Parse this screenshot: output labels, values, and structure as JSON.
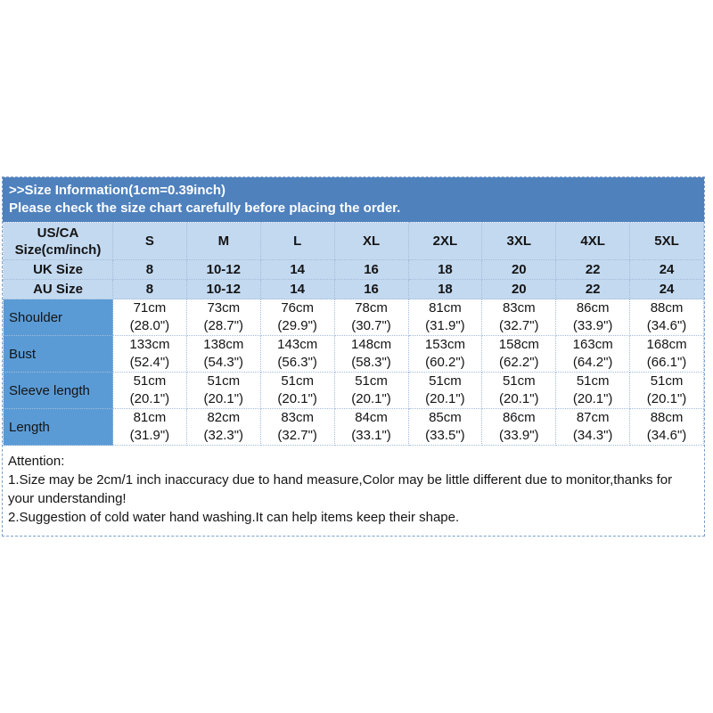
{
  "colors": {
    "band_bg": "#4f81bd",
    "band_text": "#ffffff",
    "header_row_bg": "#c3d9f0",
    "label_column_bg": "#5b9bd5",
    "table_text": "#141414",
    "grid_border": "#a3bcd9",
    "outer_border": "#7aa0cc"
  },
  "banner": {
    "title": ">>Size Information(1cm=0.39inch)",
    "subtitle": "Please check the size chart carefully before placing the order."
  },
  "size_table": {
    "corner_line1": "US/CA",
    "corner_line2": "Size(cm/inch)",
    "size_headers": [
      "S",
      "M",
      "L",
      "XL",
      "2XL",
      "3XL",
      "4XL",
      "5XL"
    ],
    "size_rows": [
      {
        "label": "UK Size",
        "values": [
          "8",
          "10-12",
          "14",
          "16",
          "18",
          "20",
          "22",
          "24"
        ]
      },
      {
        "label": "AU Size",
        "values": [
          "8",
          "10-12",
          "14",
          "16",
          "18",
          "20",
          "22",
          "24"
        ]
      }
    ],
    "measurement_rows": [
      {
        "label": "Shoulder",
        "cm": [
          "71cm",
          "73cm",
          "76cm",
          "78cm",
          "81cm",
          "83cm",
          "86cm",
          "88cm"
        ],
        "inch": [
          "(28.0\")",
          "(28.7\")",
          "(29.9\")",
          "(30.7\")",
          "(31.9\")",
          "(32.7\")",
          "(33.9\")",
          "(34.6\")"
        ]
      },
      {
        "label": "Bust",
        "cm": [
          "133cm",
          "138cm",
          "143cm",
          "148cm",
          "153cm",
          "158cm",
          "163cm",
          "168cm"
        ],
        "inch": [
          "(52.4\")",
          "(54.3\")",
          "(56.3\")",
          "(58.3\")",
          "(60.2\")",
          "(62.2\")",
          "(64.2\")",
          "(66.1\")"
        ]
      },
      {
        "label": "Sleeve length",
        "cm": [
          "51cm",
          "51cm",
          "51cm",
          "51cm",
          "51cm",
          "51cm",
          "51cm",
          "51cm"
        ],
        "inch": [
          "(20.1\")",
          "(20.1\")",
          "(20.1\")",
          "(20.1\")",
          "(20.1\")",
          "(20.1\")",
          "(20.1\")",
          "(20.1\")"
        ]
      },
      {
        "label": "Length",
        "cm": [
          "81cm",
          "82cm",
          "83cm",
          "84cm",
          "85cm",
          "86cm",
          "87cm",
          "88cm"
        ],
        "inch": [
          "(31.9\")",
          "(32.3\")",
          "(32.7\")",
          "(33.1\")",
          "(33.5\")",
          "(33.9\")",
          "(34.3\")",
          "(34.6\")"
        ]
      }
    ]
  },
  "attention": {
    "title": "Attention:",
    "notes": [
      "1.Size may be 2cm/1 inch inaccuracy due to hand measure,Color may be little different due to monitor,thanks for your understanding!",
      "2.Suggestion of cold water hand washing.It can help items keep their shape."
    ]
  }
}
